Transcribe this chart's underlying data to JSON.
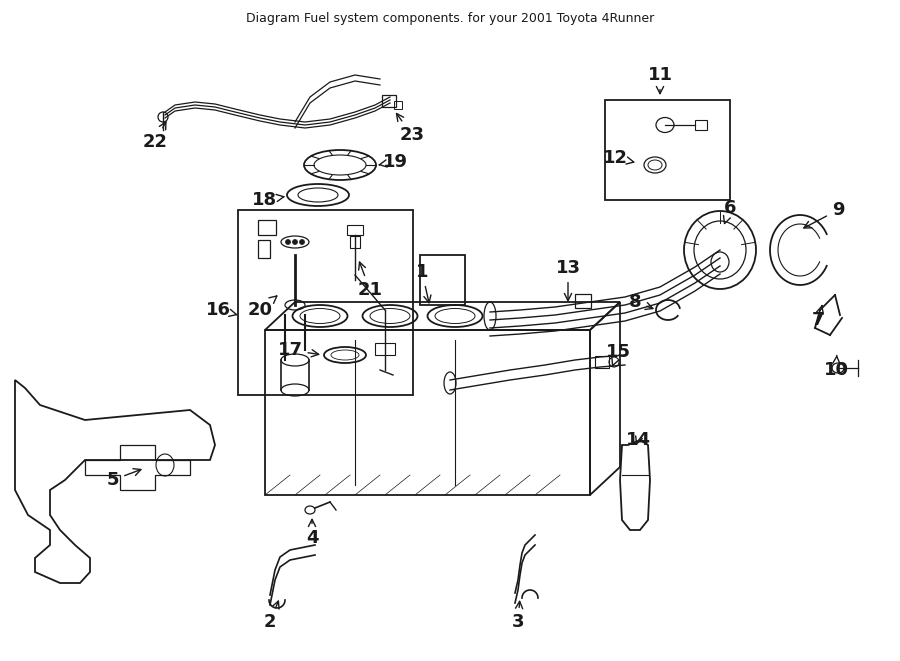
{
  "title": "Diagram Fuel system components. for your 2001 Toyota 4Runner",
  "bg_color": "#ffffff",
  "line_color": "#1a1a1a",
  "font_size_labels": 13,
  "figsize": [
    9.0,
    6.61
  ],
  "dpi": 100
}
